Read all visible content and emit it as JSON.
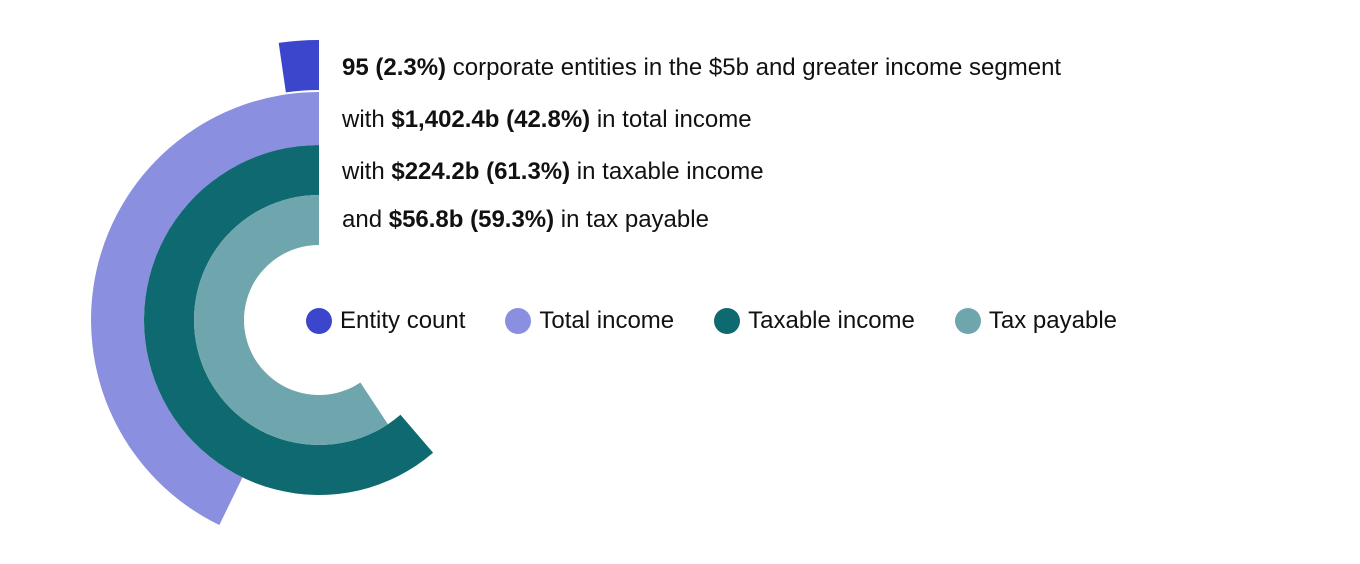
{
  "caption": {
    "line1": {
      "strong": "95 (2.3%)",
      "text": " corporate entities in the $5b and greater income segment"
    },
    "line2": {
      "pre": "with ",
      "strong": "$1,402.4b (42.8%)",
      "text": " in total income"
    },
    "line3": {
      "pre": "with ",
      "strong": "$224.2b (61.3%)",
      "text": " in taxable income"
    },
    "line4": {
      "pre": "and ",
      "strong": "$56.8b (59.3%)",
      "text": " in tax payable"
    }
  },
  "chart_data": {
    "type": "radial-bar",
    "title": "",
    "max_percent": 100,
    "series": [
      {
        "name": "Entity count",
        "value": 95,
        "value_label": "95",
        "percent": 2.3,
        "color": "#3c46cc"
      },
      {
        "name": "Total income",
        "value": 1402.4,
        "value_label": "$1,402.4b",
        "percent": 42.8,
        "color": "#8a8fe0"
      },
      {
        "name": "Taxable income",
        "value": 224.2,
        "value_label": "$224.2b",
        "percent": 61.3,
        "color": "#0e6a70"
      },
      {
        "name": "Tax payable",
        "value": 56.8,
        "value_label": "$56.8b",
        "percent": 59.3,
        "color": "#6fa6ad"
      }
    ],
    "legend_position": "right"
  }
}
